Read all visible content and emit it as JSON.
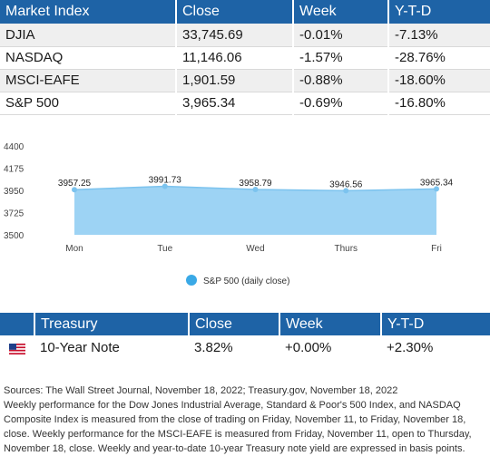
{
  "market_table": {
    "headers": [
      "Market Index",
      "Close",
      "Week",
      "Y-T-D"
    ],
    "rows": [
      [
        "DJIA",
        "33,745.69",
        "-0.01%",
        "-7.13%"
      ],
      [
        "NASDAQ",
        "11,146.06",
        "-1.57%",
        "-28.76%"
      ],
      [
        "MSCI-EAFE",
        "1,901.59",
        "-0.88%",
        "-18.60%"
      ],
      [
        "S&P 500",
        "3,965.34",
        "-0.69%",
        "-16.80%"
      ]
    ]
  },
  "chart_data": {
    "type": "area",
    "categories": [
      "Mon",
      "Tue",
      "Wed",
      "Thurs",
      "Fri"
    ],
    "series": [
      {
        "name": "S&P 500 (daily close)",
        "values": [
          3957.25,
          3991.73,
          3958.79,
          3946.56,
          3965.34
        ]
      }
    ],
    "data_labels": [
      "3957.25",
      "3991.73",
      "3958.79",
      "3946.56",
      "3965.34"
    ],
    "y_ticks": [
      "4400",
      "4175",
      "3950",
      "3725",
      "3500"
    ],
    "ylim": [
      3500,
      4400
    ],
    "color": "#9dd3f4",
    "marker_color": "#3aa9e6",
    "legend_position": "bottom-center"
  },
  "treasury_table": {
    "headers": [
      "",
      "Treasury",
      "Close",
      "Week",
      "Y-T-D"
    ],
    "row": {
      "flag": "us-flag-icon",
      "name": "10-Year Note",
      "close": "3.82%",
      "week": "+0.00%",
      "ytd": "+2.30%"
    }
  },
  "notes": [
    "Sources: The Wall Street Journal, November 18, 2022; Treasury.gov, November 18, 2022",
    "Weekly performance for the Dow Jones Industrial Average, Standard & Poor's 500 Index, and NASDAQ Composite Index is measured from the close of trading on Friday, November 11, to Friday, November 18, close. Weekly performance for the MSCI-EAFE is measured from Friday, November 11, open to Thursday, November 18, close. Weekly and year-to-date 10-year Treasury note yield are expressed in basis points."
  ],
  "colors": {
    "header_bg": "#1e63a6",
    "row_alt": "#efefef"
  }
}
